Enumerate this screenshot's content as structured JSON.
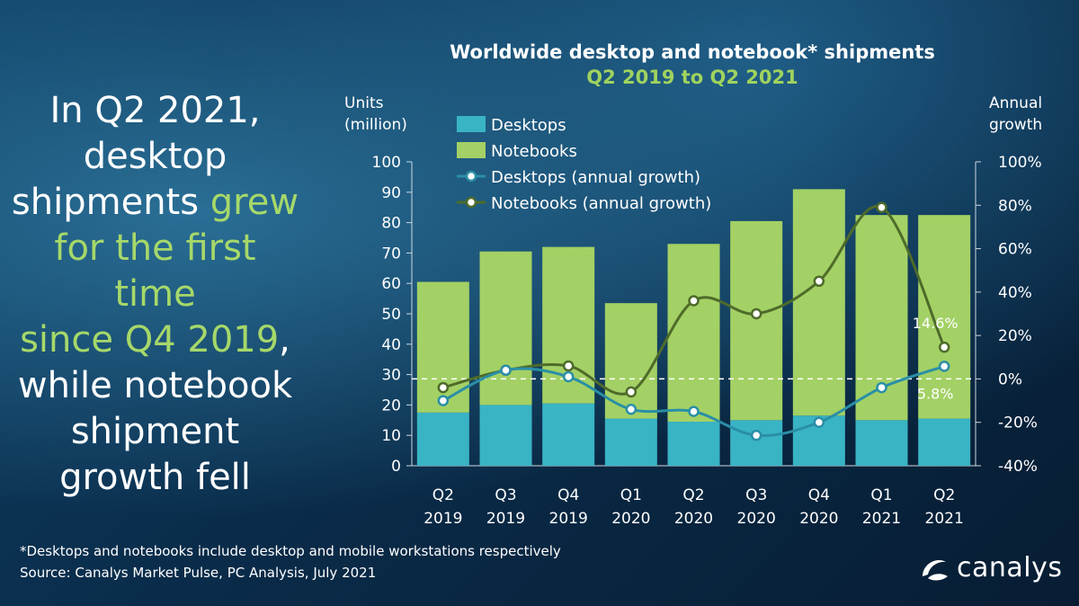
{
  "headline": {
    "line1": "In Q2 2021,",
    "line2": "desktop",
    "line3_a": "shipments ",
    "line3_b": "grew",
    "line4": "for the first time",
    "line5_a": "since Q4 2019",
    "line5_b": ",",
    "line6": "while notebook",
    "line7": "shipment",
    "line8": "growth fell"
  },
  "colors": {
    "desktops": "#39b4c5",
    "notebooks": "#a3d165",
    "desktops_line": "#2a8fa6",
    "notebooks_line": "#4e6b2a",
    "headline_accent": "#a6d86a"
  },
  "chart_data": {
    "type": "bar",
    "title": "Worldwide desktop and notebook* shipments",
    "subtitle": "Q2 2019 to Q2 2021",
    "ylabel_left": [
      "Units",
      "(million)"
    ],
    "ylabel_right": [
      "Annual",
      "growth"
    ],
    "categories": [
      [
        "Q2",
        "2019"
      ],
      [
        "Q3",
        "2019"
      ],
      [
        "Q4",
        "2019"
      ],
      [
        "Q1",
        "2020"
      ],
      [
        "Q2",
        "2020"
      ],
      [
        "Q3",
        "2020"
      ],
      [
        "Q4",
        "2020"
      ],
      [
        "Q1",
        "2021"
      ],
      [
        "Q2",
        "2021"
      ]
    ],
    "ylim_left": [
      0,
      100
    ],
    "yticks_left": [
      "0",
      "10",
      "20",
      "30",
      "40",
      "50",
      "60",
      "70",
      "80",
      "90",
      "100"
    ],
    "ylim_right": [
      -40,
      100
    ],
    "yticks_right": [
      "-40%",
      "-20%",
      "0%",
      "20%",
      "40%",
      "60%",
      "80%",
      "100%"
    ],
    "stacked": true,
    "series": [
      {
        "name": "Desktops",
        "kind": "bar",
        "values": [
          17.5,
          20,
          20.5,
          15.5,
          14.5,
          15,
          16.5,
          15,
          15.5
        ]
      },
      {
        "name": "Notebooks",
        "kind": "bar",
        "values": [
          43,
          50.5,
          51.5,
          38,
          58.5,
          65.5,
          74.5,
          67.5,
          67
        ]
      },
      {
        "name": "Desktops (annual growth)",
        "kind": "line",
        "axis": "right",
        "values": [
          -10,
          4,
          1,
          -14,
          -15,
          -26,
          -20,
          -4,
          5.8
        ]
      },
      {
        "name": "Notebooks (annual growth)",
        "kind": "line",
        "axis": "right",
        "values": [
          -4,
          4,
          6,
          -6,
          36,
          30,
          45,
          79,
          14.6
        ]
      }
    ],
    "annotations": [
      {
        "series": "Notebooks (annual growth)",
        "category_index": 8,
        "text": "14.6%"
      },
      {
        "series": "Desktops (annual growth)",
        "category_index": 8,
        "text": "5.8%"
      }
    ],
    "zero_growth_line": "dashed",
    "legend_position": "top-left"
  },
  "footnote": {
    "line1": "*Desktops and notebooks include desktop and mobile workstations respectively",
    "line2": "Source: Canalys Market Pulse, PC Analysis, July 2021"
  },
  "logo": {
    "text": "canalys",
    "icon": "canalys-swoosh-icon"
  }
}
